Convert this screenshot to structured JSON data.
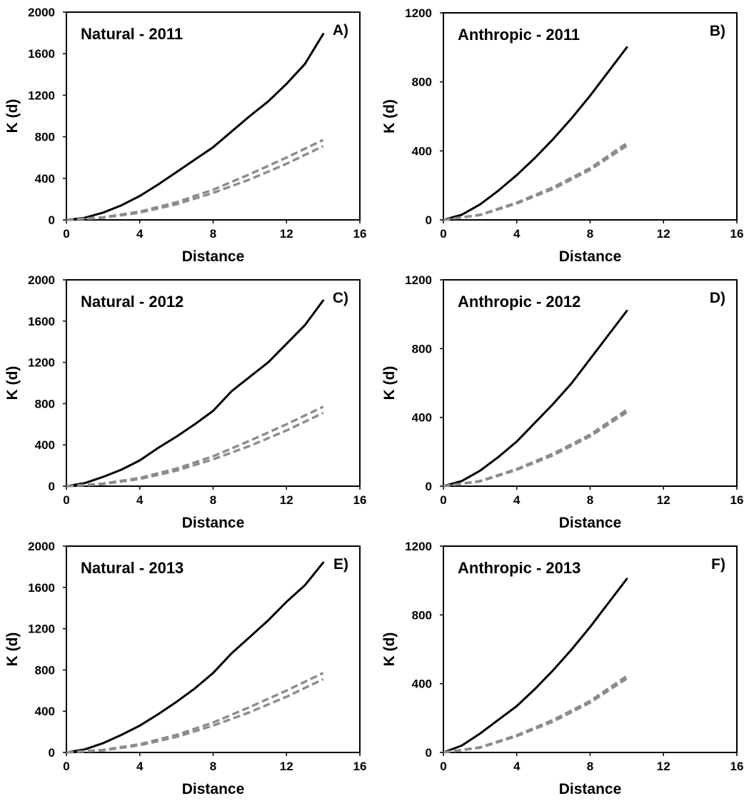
{
  "chart_data": [
    {
      "type": "line",
      "title": "Natural - 2011",
      "panel_label": "A)",
      "xlabel": "Distance",
      "ylabel": "K (d)",
      "xlim": [
        0,
        16
      ],
      "ylim": [
        0,
        2000
      ],
      "xticks": [
        "0",
        "4",
        "8",
        "12",
        "16"
      ],
      "yticks": [
        "0",
        "400",
        "800",
        "1200",
        "1600",
        "2000"
      ],
      "grid": false,
      "colors": {
        "observed": "#000000",
        "envelope": "#8c8c8c"
      },
      "series": [
        {
          "style": "solid",
          "x": [
            0,
            1,
            2,
            3,
            4,
            5,
            6,
            7,
            8,
            9,
            10,
            11,
            12,
            13,
            14
          ],
          "y": [
            0,
            20,
            70,
            140,
            230,
            340,
            460,
            580,
            700,
            850,
            1000,
            1140,
            1310,
            1500,
            1790
          ]
        },
        {
          "style": "dashed",
          "x": [
            0,
            2,
            4,
            6,
            8,
            10,
            12,
            14
          ],
          "y": [
            0,
            25,
            80,
            170,
            290,
            440,
            600,
            770
          ]
        },
        {
          "style": "dashed",
          "x": [
            0,
            2,
            4,
            6,
            8,
            10,
            12,
            14
          ],
          "y": [
            0,
            20,
            70,
            150,
            260,
            390,
            540,
            710
          ]
        }
      ]
    },
    {
      "type": "line",
      "title": "Anthropic - 2011",
      "panel_label": "B)",
      "xlabel": "Distance",
      "ylabel": "K (d)",
      "xlim": [
        0,
        16
      ],
      "ylim": [
        0,
        1200
      ],
      "xticks": [
        "0",
        "4",
        "8",
        "12",
        "16"
      ],
      "yticks": [
        "0",
        "400",
        "800",
        "1200"
      ],
      "grid": false,
      "colors": {
        "observed": "#000000",
        "envelope": "#8c8c8c"
      },
      "series": [
        {
          "style": "solid",
          "x": [
            0,
            1,
            2,
            3,
            4,
            5,
            6,
            7,
            8,
            9,
            10
          ],
          "y": [
            0,
            30,
            90,
            170,
            260,
            360,
            470,
            590,
            720,
            860,
            1000
          ]
        },
        {
          "style": "dashed",
          "x": [
            0,
            2,
            4,
            6,
            8,
            10
          ],
          "y": [
            0,
            30,
            100,
            190,
            300,
            445
          ]
        },
        {
          "style": "dashed",
          "x": [
            0,
            2,
            4,
            6,
            8,
            10
          ],
          "y": [
            0,
            28,
            95,
            180,
            290,
            430
          ]
        }
      ]
    },
    {
      "type": "line",
      "title": "Natural - 2012",
      "panel_label": "C)",
      "xlabel": "Distance",
      "ylabel": "K (d)",
      "xlim": [
        0,
        16
      ],
      "ylim": [
        0,
        2000
      ],
      "xticks": [
        "0",
        "4",
        "8",
        "12",
        "16"
      ],
      "yticks": [
        "0",
        "400",
        "800",
        "1200",
        "1600",
        "2000"
      ],
      "grid": false,
      "colors": {
        "observed": "#000000",
        "envelope": "#8c8c8c"
      },
      "series": [
        {
          "style": "solid",
          "x": [
            0,
            1,
            2,
            3,
            4,
            5,
            6,
            7,
            8,
            9,
            10,
            11,
            12,
            13,
            14
          ],
          "y": [
            0,
            30,
            90,
            160,
            250,
            370,
            480,
            600,
            730,
            920,
            1060,
            1200,
            1380,
            1560,
            1800
          ]
        },
        {
          "style": "dashed",
          "x": [
            0,
            2,
            4,
            6,
            8,
            10,
            12,
            14
          ],
          "y": [
            0,
            25,
            80,
            170,
            290,
            440,
            600,
            770
          ]
        },
        {
          "style": "dashed",
          "x": [
            0,
            2,
            4,
            6,
            8,
            10,
            12,
            14
          ],
          "y": [
            0,
            20,
            70,
            150,
            260,
            390,
            540,
            710
          ]
        }
      ]
    },
    {
      "type": "line",
      "title": "Anthropic - 2012",
      "panel_label": "D)",
      "xlabel": "Distance",
      "ylabel": "K (d)",
      "xlim": [
        0,
        16
      ],
      "ylim": [
        0,
        1200
      ],
      "xticks": [
        "0",
        "4",
        "8",
        "12",
        "16"
      ],
      "yticks": [
        "0",
        "400",
        "800",
        "1200"
      ],
      "grid": false,
      "colors": {
        "observed": "#000000",
        "envelope": "#8c8c8c"
      },
      "series": [
        {
          "style": "solid",
          "x": [
            0,
            1,
            2,
            3,
            4,
            5,
            6,
            7,
            8,
            9,
            10
          ],
          "y": [
            0,
            30,
            90,
            170,
            260,
            370,
            480,
            600,
            740,
            880,
            1020
          ]
        },
        {
          "style": "dashed",
          "x": [
            0,
            2,
            4,
            6,
            8,
            10
          ],
          "y": [
            0,
            30,
            100,
            190,
            300,
            445
          ]
        },
        {
          "style": "dashed",
          "x": [
            0,
            2,
            4,
            6,
            8,
            10
          ],
          "y": [
            0,
            28,
            95,
            180,
            290,
            430
          ]
        }
      ]
    },
    {
      "type": "line",
      "title": "Natural - 2013",
      "panel_label": "E)",
      "xlabel": "Distance",
      "ylabel": "K (d)",
      "xlim": [
        0,
        16
      ],
      "ylim": [
        0,
        2000
      ],
      "xticks": [
        "0",
        "4",
        "8",
        "12",
        "16"
      ],
      "yticks": [
        "0",
        "400",
        "800",
        "1200",
        "1600",
        "2000"
      ],
      "grid": false,
      "colors": {
        "observed": "#000000",
        "envelope": "#8c8c8c"
      },
      "series": [
        {
          "style": "solid",
          "x": [
            0,
            1,
            2,
            3,
            4,
            5,
            6,
            7,
            8,
            9,
            10,
            11,
            12,
            13,
            14
          ],
          "y": [
            0,
            30,
            90,
            170,
            260,
            370,
            490,
            620,
            770,
            960,
            1120,
            1280,
            1460,
            1620,
            1840
          ]
        },
        {
          "style": "dashed",
          "x": [
            0,
            2,
            4,
            6,
            8,
            10,
            12,
            14
          ],
          "y": [
            0,
            25,
            80,
            170,
            290,
            440,
            600,
            770
          ]
        },
        {
          "style": "dashed",
          "x": [
            0,
            2,
            4,
            6,
            8,
            10,
            12,
            14
          ],
          "y": [
            0,
            20,
            70,
            150,
            260,
            390,
            540,
            710
          ]
        }
      ]
    },
    {
      "type": "line",
      "title": "Anthropic - 2013",
      "panel_label": "F)",
      "xlabel": "Distance",
      "ylabel": "K (d)",
      "xlim": [
        0,
        16
      ],
      "ylim": [
        0,
        1200
      ],
      "xticks": [
        "0",
        "4",
        "8",
        "12",
        "16"
      ],
      "yticks": [
        "0",
        "400",
        "800",
        "1200"
      ],
      "grid": false,
      "colors": {
        "observed": "#000000",
        "envelope": "#8c8c8c"
      },
      "series": [
        {
          "style": "solid",
          "x": [
            0,
            1,
            2,
            3,
            4,
            5,
            6,
            7,
            8,
            9,
            10
          ],
          "y": [
            0,
            40,
            110,
            190,
            270,
            370,
            480,
            600,
            730,
            870,
            1010
          ]
        },
        {
          "style": "dashed",
          "x": [
            0,
            2,
            4,
            6,
            8,
            10
          ],
          "y": [
            0,
            30,
            100,
            190,
            300,
            445
          ]
        },
        {
          "style": "dashed",
          "x": [
            0,
            2,
            4,
            6,
            8,
            10
          ],
          "y": [
            0,
            28,
            95,
            180,
            290,
            430
          ]
        }
      ]
    }
  ]
}
